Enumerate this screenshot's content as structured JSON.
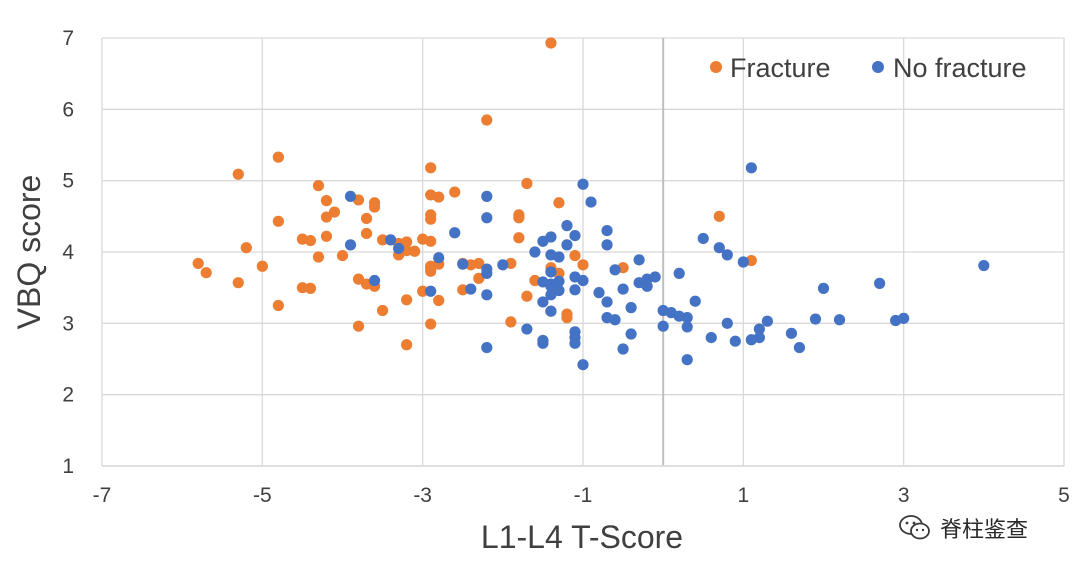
{
  "chart_data": {
    "type": "scatter",
    "xlabel": "L1-L4 T-Score",
    "ylabel": "VBQ score",
    "xlim": [
      -7,
      5
    ],
    "ylim": [
      1,
      7
    ],
    "xticks": [
      -7,
      -5,
      -3,
      -1,
      1,
      3,
      5
    ],
    "yticks": [
      1,
      2,
      3,
      4,
      5,
      6,
      7
    ],
    "xtick_labels": [
      "-7",
      "-5",
      "-3",
      "-1",
      "1",
      "3",
      "5"
    ],
    "ytick_labels": [
      "1",
      "2",
      "3",
      "4",
      "5",
      "6",
      "7"
    ],
    "grid": true,
    "legend_position": "top-right",
    "series": [
      {
        "name": "Fracture",
        "color": "#ED7D31",
        "points": [
          [
            -1.4,
            6.93
          ],
          [
            -2.2,
            5.85
          ],
          [
            -4.8,
            5.33
          ],
          [
            -5.3,
            5.09
          ],
          [
            -2.9,
            5.18
          ],
          [
            -4.3,
            4.93
          ],
          [
            -1.7,
            4.96
          ],
          [
            -2.6,
            4.84
          ],
          [
            -2.8,
            4.77
          ],
          [
            -2.9,
            4.8
          ],
          [
            -3.8,
            4.73
          ],
          [
            -3.6,
            4.69
          ],
          [
            -3.6,
            4.63
          ],
          [
            -4.2,
            4.72
          ],
          [
            -4.1,
            4.56
          ],
          [
            -1.3,
            4.69
          ],
          [
            -4.8,
            4.43
          ],
          [
            -4.2,
            4.49
          ],
          [
            -3.7,
            4.47
          ],
          [
            -2.9,
            4.52
          ],
          [
            -2.9,
            4.46
          ],
          [
            -1.8,
            4.52
          ],
          [
            -1.8,
            4.48
          ],
          [
            0.7,
            4.5
          ],
          [
            -3.7,
            4.26
          ],
          [
            -4.2,
            4.22
          ],
          [
            -4.5,
            4.18
          ],
          [
            -4.4,
            4.16
          ],
          [
            -3.5,
            4.17
          ],
          [
            -3.3,
            4.12
          ],
          [
            -3.2,
            4.14
          ],
          [
            -3.0,
            4.18
          ],
          [
            -2.9,
            4.15
          ],
          [
            -1.8,
            4.2
          ],
          [
            -5.2,
            4.06
          ],
          [
            -3.3,
            3.96
          ],
          [
            -3.2,
            4.02
          ],
          [
            -3.1,
            4.01
          ],
          [
            -4.3,
            3.93
          ],
          [
            -4.0,
            3.95
          ],
          [
            -2.4,
            3.82
          ],
          [
            -1.4,
            3.78
          ],
          [
            -1.3,
            3.7
          ],
          [
            -1.1,
            3.95
          ],
          [
            -1.0,
            3.82
          ],
          [
            1.1,
            3.88
          ],
          [
            -0.5,
            3.78
          ],
          [
            -5.8,
            3.84
          ],
          [
            -5.0,
            3.8
          ],
          [
            -5.7,
            3.71
          ],
          [
            -2.9,
            3.73
          ],
          [
            -2.9,
            3.77
          ],
          [
            -2.9,
            3.8
          ],
          [
            -2.8,
            3.83
          ],
          [
            -2.5,
            3.84
          ],
          [
            -2.3,
            3.84
          ],
          [
            -1.9,
            3.84
          ],
          [
            -3.8,
            3.62
          ],
          [
            -3.7,
            3.55
          ],
          [
            -3.6,
            3.52
          ],
          [
            -5.3,
            3.57
          ],
          [
            -4.5,
            3.5
          ],
          [
            -4.4,
            3.49
          ],
          [
            -3.0,
            3.45
          ],
          [
            -2.5,
            3.47
          ],
          [
            -1.7,
            3.38
          ],
          [
            -2.8,
            3.32
          ],
          [
            -3.2,
            3.33
          ],
          [
            -4.8,
            3.25
          ],
          [
            -3.5,
            3.18
          ],
          [
            -1.4,
            3.17
          ],
          [
            -1.2,
            3.13
          ],
          [
            -1.2,
            3.08
          ],
          [
            -1.9,
            3.02
          ],
          [
            -3.8,
            2.96
          ],
          [
            -2.9,
            2.99
          ],
          [
            -3.2,
            2.7
          ],
          [
            -1.6,
            3.6
          ],
          [
            -2.3,
            3.63
          ]
        ]
      },
      {
        "name": "No fracture",
        "color": "#4472C4",
        "points": [
          [
            1.1,
            5.18
          ],
          [
            -1.0,
            4.95
          ],
          [
            -0.9,
            4.7
          ],
          [
            -3.9,
            4.78
          ],
          [
            -2.2,
            4.78
          ],
          [
            -2.2,
            4.48
          ],
          [
            -1.2,
            4.37
          ],
          [
            -0.7,
            4.3
          ],
          [
            -2.6,
            4.27
          ],
          [
            -1.4,
            4.21
          ],
          [
            -1.1,
            4.23
          ],
          [
            -3.4,
            4.17
          ],
          [
            -1.5,
            4.15
          ],
          [
            -1.2,
            4.1
          ],
          [
            -0.7,
            4.1
          ],
          [
            0.5,
            4.19
          ],
          [
            0.7,
            4.06
          ],
          [
            -3.9,
            4.1
          ],
          [
            -3.3,
            4.05
          ],
          [
            -1.6,
            4.0
          ],
          [
            -1.4,
            3.96
          ],
          [
            -1.3,
            3.93
          ],
          [
            -2.8,
            3.92
          ],
          [
            0.8,
            3.96
          ],
          [
            1.0,
            3.86
          ],
          [
            -0.3,
            3.89
          ],
          [
            -2.5,
            3.83
          ],
          [
            -2.0,
            3.82
          ],
          [
            -2.2,
            3.76
          ],
          [
            -2.2,
            3.7
          ],
          [
            -1.4,
            3.72
          ],
          [
            -0.6,
            3.75
          ],
          [
            -1.1,
            3.65
          ],
          [
            -1.0,
            3.6
          ],
          [
            -0.2,
            3.62
          ],
          [
            -0.3,
            3.57
          ],
          [
            -0.1,
            3.65
          ],
          [
            0.2,
            3.7
          ],
          [
            4.0,
            3.81
          ],
          [
            -3.6,
            3.6
          ],
          [
            -1.5,
            3.58
          ],
          [
            -1.4,
            3.55
          ],
          [
            -1.4,
            3.52
          ],
          [
            -1.3,
            3.46
          ],
          [
            -1.1,
            3.47
          ],
          [
            -0.5,
            3.48
          ],
          [
            -0.2,
            3.52
          ],
          [
            -2.9,
            3.45
          ],
          [
            -2.4,
            3.48
          ],
          [
            -2.2,
            3.4
          ],
          [
            -1.4,
            3.4
          ],
          [
            -1.5,
            3.3
          ],
          [
            -0.8,
            3.43
          ],
          [
            -0.7,
            3.3
          ],
          [
            0.4,
            3.31
          ],
          [
            2.0,
            3.49
          ],
          [
            2.7,
            3.56
          ],
          [
            -1.4,
            3.17
          ],
          [
            -0.4,
            3.22
          ],
          [
            0.0,
            3.18
          ],
          [
            0.1,
            3.15
          ],
          [
            0.2,
            3.1
          ],
          [
            0.3,
            3.08
          ],
          [
            -0.6,
            3.05
          ],
          [
            -0.7,
            3.08
          ],
          [
            0.0,
            2.96
          ],
          [
            0.3,
            2.95
          ],
          [
            0.8,
            3.0
          ],
          [
            1.3,
            3.03
          ],
          [
            1.9,
            3.06
          ],
          [
            2.2,
            3.05
          ],
          [
            2.9,
            3.04
          ],
          [
            3.0,
            3.07
          ],
          [
            -1.7,
            2.92
          ],
          [
            -1.1,
            2.88
          ],
          [
            -1.1,
            2.8
          ],
          [
            -0.4,
            2.85
          ],
          [
            0.6,
            2.8
          ],
          [
            1.2,
            2.92
          ],
          [
            1.2,
            2.8
          ],
          [
            1.6,
            2.86
          ],
          [
            -1.1,
            2.72
          ],
          [
            -1.5,
            2.72
          ],
          [
            -1.5,
            2.76
          ],
          [
            -0.5,
            2.64
          ],
          [
            -2.2,
            2.66
          ],
          [
            0.9,
            2.75
          ],
          [
            1.1,
            2.77
          ],
          [
            1.7,
            2.66
          ],
          [
            0.3,
            2.49
          ],
          [
            -1.0,
            2.42
          ],
          [
            -1.3,
            3.59
          ]
        ]
      }
    ]
  },
  "watermark": {
    "icon": "wechat-icon",
    "text": "脊柱鉴查"
  }
}
